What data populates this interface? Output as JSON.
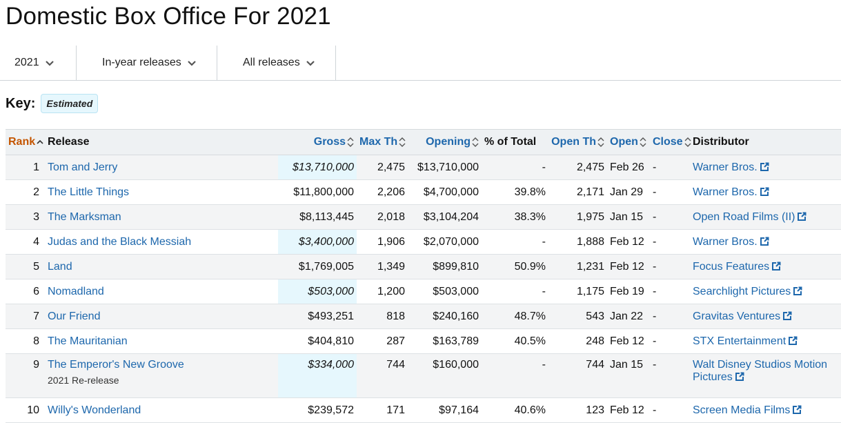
{
  "page": {
    "title": "Domestic Box Office For 2021"
  },
  "filters": {
    "year": "2021",
    "release_type": "In-year releases",
    "scope": "All releases"
  },
  "key": {
    "label": "Key:",
    "badge": "Estimated"
  },
  "columns": {
    "rank": "Rank",
    "release": "Release",
    "gross": "Gross",
    "max_th": "Max Th",
    "opening": "Opening",
    "pct_total": "% of Total",
    "open_th": "Open Th",
    "open": "Open",
    "close": "Close",
    "distributor": "Distributor"
  },
  "rows": [
    {
      "rank": "1",
      "release": "Tom and Jerry",
      "gross": "$13,710,000",
      "estimated": true,
      "max_th": "2,475",
      "opening": "$13,710,000",
      "pct": "-",
      "open_th": "2,475",
      "open": "Feb 26",
      "close": "-",
      "distributor": "Warner Bros."
    },
    {
      "rank": "2",
      "release": "The Little Things",
      "gross": "$11,800,000",
      "estimated": false,
      "max_th": "2,206",
      "opening": "$4,700,000",
      "pct": "39.8%",
      "open_th": "2,171",
      "open": "Jan 29",
      "close": "-",
      "distributor": "Warner Bros."
    },
    {
      "rank": "3",
      "release": "The Marksman",
      "gross": "$8,113,445",
      "estimated": false,
      "max_th": "2,018",
      "opening": "$3,104,204",
      "pct": "38.3%",
      "open_th": "1,975",
      "open": "Jan 15",
      "close": "-",
      "distributor": "Open Road Films (II)"
    },
    {
      "rank": "4",
      "release": "Judas and the Black Messiah",
      "gross": "$3,400,000",
      "estimated": true,
      "max_th": "1,906",
      "opening": "$2,070,000",
      "pct": "-",
      "open_th": "1,888",
      "open": "Feb 12",
      "close": "-",
      "distributor": "Warner Bros."
    },
    {
      "rank": "5",
      "release": "Land",
      "gross": "$1,769,005",
      "estimated": false,
      "max_th": "1,349",
      "opening": "$899,810",
      "pct": "50.9%",
      "open_th": "1,231",
      "open": "Feb 12",
      "close": "-",
      "distributor": "Focus Features"
    },
    {
      "rank": "6",
      "release": "Nomadland",
      "gross": "$503,000",
      "estimated": true,
      "max_th": "1,200",
      "opening": "$503,000",
      "pct": "-",
      "open_th": "1,175",
      "open": "Feb 19",
      "close": "-",
      "distributor": "Searchlight Pictures"
    },
    {
      "rank": "7",
      "release": "Our Friend",
      "gross": "$493,251",
      "estimated": false,
      "max_th": "818",
      "opening": "$240,160",
      "pct": "48.7%",
      "open_th": "543",
      "open": "Jan 22",
      "close": "-",
      "distributor": "Gravitas Ventures"
    },
    {
      "rank": "8",
      "release": "The Mauritanian",
      "gross": "$404,810",
      "estimated": false,
      "max_th": "287",
      "opening": "$163,789",
      "pct": "40.5%",
      "open_th": "248",
      "open": "Feb 12",
      "close": "-",
      "distributor": "STX Entertainment"
    },
    {
      "rank": "9",
      "release": "The Emperor's New Groove",
      "release_note": "2021 Re-release",
      "gross": "$334,000",
      "estimated": true,
      "max_th": "744",
      "opening": "$160,000",
      "pct": "-",
      "open_th": "744",
      "open": "Jan 15",
      "close": "-",
      "distributor": "Walt Disney Studios Motion",
      "distributor_line2": "Pictures"
    },
    {
      "rank": "10",
      "release": "Willy's Wonderland",
      "gross": "$239,572",
      "estimated": false,
      "max_th": "171",
      "opening": "$97,164",
      "pct": "40.6%",
      "open_th": "123",
      "open": "Feb 12",
      "close": "-",
      "distributor": "Screen Media Films"
    }
  ],
  "colors": {
    "link": "#1d67ac",
    "rank_header": "#c45500",
    "estimated_bg": "#e6f7fd",
    "header_bg": "#eef1f3"
  }
}
